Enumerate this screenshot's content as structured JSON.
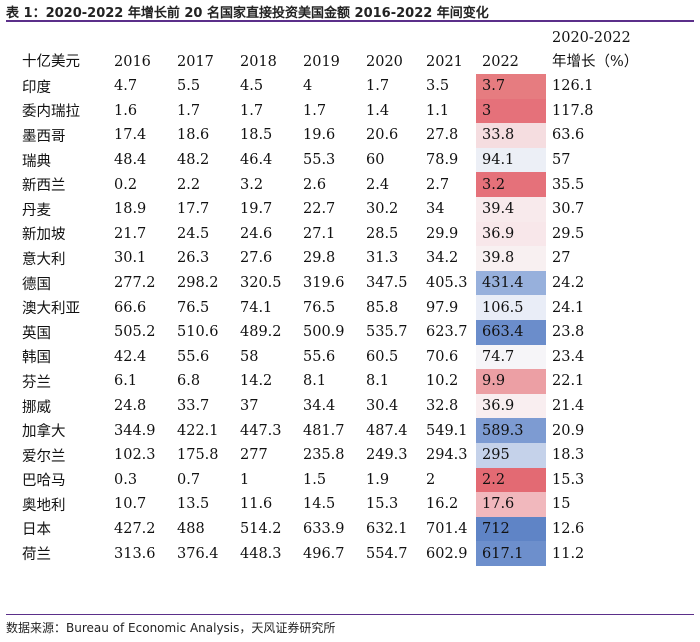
{
  "title": "表 1：2020-2022 年增长前 20 名国家直接投资美国金额 2016-2022 年间变化",
  "source": "数据来源：Bureau of Economic Analysis，天风证券研究所",
  "table": {
    "unit_header": "十亿美元",
    "year_headers": [
      "2016",
      "2017",
      "2018",
      "2019",
      "2020",
      "2021",
      "2022"
    ],
    "growth_header_line1": "2020-2022",
    "growth_header_line2": "年增长（%）",
    "rows": [
      {
        "country": "印度",
        "v": [
          "4.7",
          "5.5",
          "4.5",
          "4",
          "1.7",
          "3.5",
          "3.7"
        ],
        "growth": "126.1",
        "heat": "#e67c80"
      },
      {
        "country": "委内瑞拉",
        "v": [
          "1.6",
          "1.7",
          "1.7",
          "1.7",
          "1.4",
          "1.1",
          "3"
        ],
        "growth": "117.8",
        "heat": "#e5717a"
      },
      {
        "country": "墨西哥",
        "v": [
          "17.4",
          "18.6",
          "18.5",
          "19.6",
          "20.6",
          "27.8",
          "33.8"
        ],
        "growth": "63.6",
        "heat": "#f5dde0"
      },
      {
        "country": "瑞典",
        "v": [
          "48.4",
          "48.2",
          "46.4",
          "55.3",
          "60",
          "78.9",
          "94.1"
        ],
        "growth": "57",
        "heat": "#eceff6"
      },
      {
        "country": "新西兰",
        "v": [
          "0.2",
          "2.2",
          "3.2",
          "2.6",
          "2.4",
          "2.7",
          "3.2"
        ],
        "growth": "35.5",
        "heat": "#e5717a"
      },
      {
        "country": "丹麦",
        "v": [
          "18.9",
          "17.7",
          "19.7",
          "22.7",
          "30.2",
          "34",
          "39.4"
        ],
        "growth": "30.7",
        "heat": "#f8eaec"
      },
      {
        "country": "新加坡",
        "v": [
          "21.7",
          "24.5",
          "24.6",
          "27.1",
          "28.5",
          "29.9",
          "36.9"
        ],
        "growth": "29.5",
        "heat": "#f8e7ea"
      },
      {
        "country": "意大利",
        "v": [
          "30.1",
          "26.3",
          "27.6",
          "29.8",
          "31.3",
          "34.2",
          "39.8"
        ],
        "growth": "27",
        "heat": "#f8f0f1"
      },
      {
        "country": "德国",
        "v": [
          "277.2",
          "298.2",
          "320.5",
          "319.6",
          "347.5",
          "405.3",
          "431.4"
        ],
        "growth": "24.2",
        "heat": "#97b0dc"
      },
      {
        "country": "澳大利亚",
        "v": [
          "66.6",
          "76.5",
          "74.1",
          "76.5",
          "85.8",
          "97.9",
          "106.5"
        ],
        "growth": "24.1",
        "heat": "#e9edf7"
      },
      {
        "country": "英国",
        "v": [
          "505.2",
          "510.6",
          "489.2",
          "500.9",
          "535.7",
          "623.7",
          "663.4"
        ],
        "growth": "23.8",
        "heat": "#6b8dcb"
      },
      {
        "country": "韩国",
        "v": [
          "42.4",
          "55.6",
          "58",
          "55.6",
          "60.5",
          "70.6",
          "74.7"
        ],
        "growth": "23.4",
        "heat": "#f6f5f8"
      },
      {
        "country": "芬兰",
        "v": [
          "6.1",
          "6.8",
          "14.2",
          "8.1",
          "8.1",
          "10.2",
          "9.9"
        ],
        "growth": "22.1",
        "heat": "#ec9fa4"
      },
      {
        "country": "挪威",
        "v": [
          "24.8",
          "33.7",
          "37",
          "34.4",
          "30.4",
          "32.8",
          "36.9"
        ],
        "growth": "21.4",
        "heat": "#f9eef0"
      },
      {
        "country": "加拿大",
        "v": [
          "344.9",
          "422.1",
          "447.3",
          "481.7",
          "487.4",
          "549.1",
          "589.3"
        ],
        "growth": "20.9",
        "heat": "#7d9bd2"
      },
      {
        "country": "爱尔兰",
        "v": [
          "102.3",
          "175.8",
          "277",
          "235.8",
          "249.3",
          "294.3",
          "295"
        ],
        "growth": "18.3",
        "heat": "#c5d2ea"
      },
      {
        "country": "巴哈马",
        "v": [
          "0.3",
          "0.7",
          "1",
          "1.5",
          "1.9",
          "2",
          "2.2"
        ],
        "growth": "15.3",
        "heat": "#e36a73"
      },
      {
        "country": "奥地利",
        "v": [
          "10.7",
          "13.5",
          "11.6",
          "14.5",
          "15.3",
          "16.2",
          "17.6"
        ],
        "growth": "15",
        "heat": "#f1b8bd"
      },
      {
        "country": "日本",
        "v": [
          "427.2",
          "488",
          "514.2",
          "633.9",
          "632.1",
          "701.4",
          "712"
        ],
        "growth": "12.6",
        "heat": "#5f84c6"
      },
      {
        "country": "荷兰",
        "v": [
          "313.6",
          "376.4",
          "448.3",
          "496.7",
          "554.7",
          "602.9",
          "617.1"
        ],
        "growth": "11.2",
        "heat": "#6d8fcc"
      }
    ]
  }
}
